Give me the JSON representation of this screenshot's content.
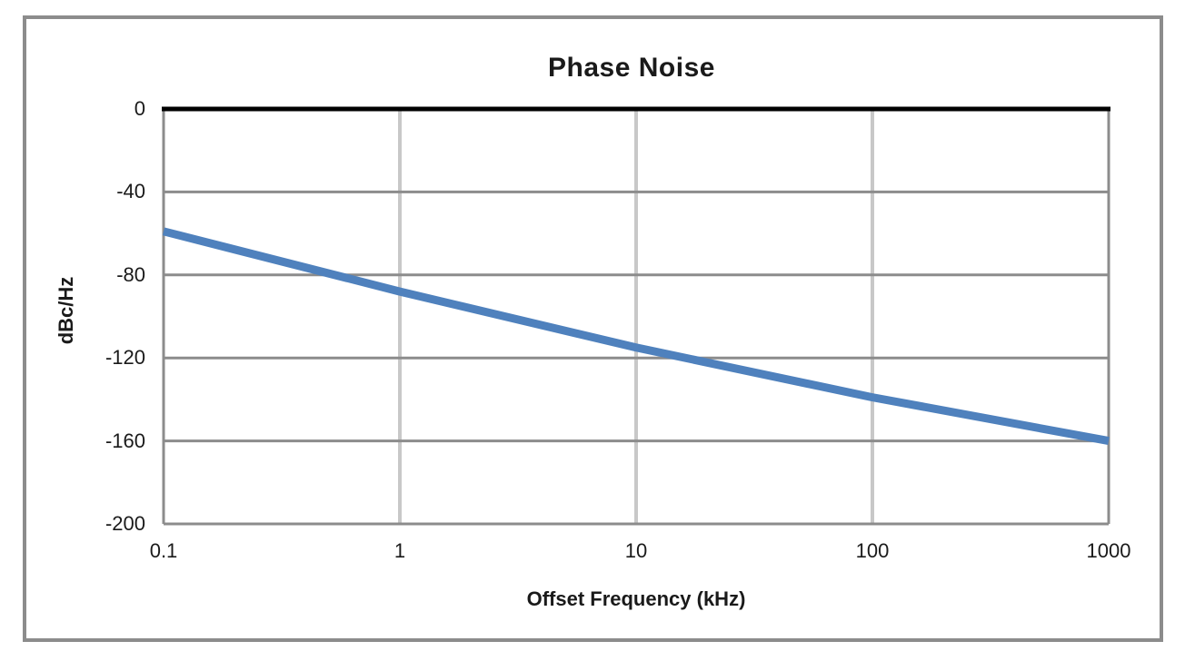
{
  "chart_data": {
    "type": "line",
    "title": "Phase Noise",
    "xlabel": "Offset Frequency (kHz)",
    "ylabel": "dBc/Hz",
    "x_scale": "log",
    "x": [
      0.1,
      1,
      10,
      100,
      1000
    ],
    "y": [
      -59,
      -88,
      -115,
      -139,
      -160
    ],
    "series_name": "Phase Noise",
    "x_tick_values": [
      0.1,
      1,
      10,
      100,
      1000
    ],
    "x_ticks": [
      "0.1",
      "1",
      "10",
      "100",
      "1000"
    ],
    "y_tick_values": [
      0,
      -40,
      -80,
      -120,
      -160,
      -200
    ],
    "y_ticks": [
      "0",
      "-40",
      "-80",
      "-120",
      "-160",
      "-200"
    ],
    "xlim": [
      0.1,
      1000
    ],
    "ylim": [
      -200,
      0
    ],
    "grid": true,
    "legend": "none",
    "line_color": "#4F81BD",
    "h_gridline_color": "#8c8c8c",
    "v_gridline_color": "#c8c8c8",
    "axis_color": "#8c8c8c",
    "top_axis_color": "#000000",
    "frame_border_color": "#8c8c8c"
  }
}
